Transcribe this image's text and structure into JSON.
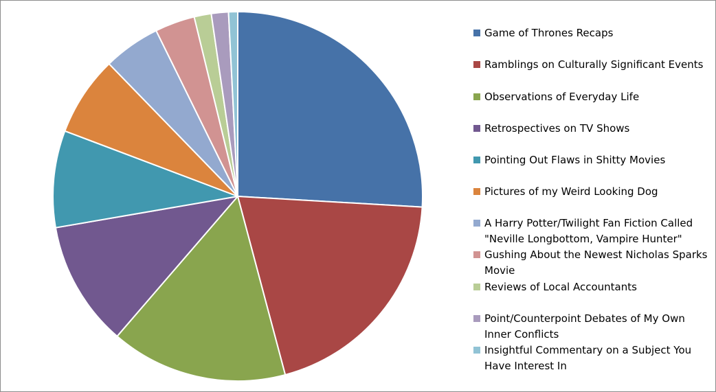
{
  "chart_data": {
    "type": "pie",
    "title": "",
    "start_angle_deg": 0,
    "direction": "clockwise",
    "legend_position": "right",
    "slices": [
      {
        "label": "Game of Thrones Recaps",
        "value": 26,
        "color": "#4672A8"
      },
      {
        "label": "Ramblings on Culturally Significant Events",
        "value": 20,
        "color": "#A94745"
      },
      {
        "label": "Observations of Everyday Life",
        "value": 15.5,
        "color": "#89A54E"
      },
      {
        "label": "Retrospectives on TV Shows",
        "value": 11,
        "color": "#71588F"
      },
      {
        "label": "Pointing Out Flaws in Shitty Movies",
        "value": 8.5,
        "color": "#4198AF"
      },
      {
        "label": "Pictures of my Weird Looking Dog",
        "value": 7,
        "color": "#DB843D"
      },
      {
        "label": "A Harry Potter/Twilight Fan Fiction Called \"Neville Longbottom, Vampire Hunter\"",
        "value": 5,
        "color": "#93A9CF"
      },
      {
        "label": "Gushing About the Newest Nicholas Sparks Movie",
        "value": 3.5,
        "color": "#D19392"
      },
      {
        "label": "Reviews of Local Accountants",
        "value": 1.5,
        "color": "#B9CD96"
      },
      {
        "label": "Point/Counterpoint Debates of My Own Inner Conflicts",
        "value": 1.5,
        "color": "#A99BBD"
      },
      {
        "label": "Insightful Commentary on a Subject You Have Interest In",
        "value": 0.8,
        "color": "#91C3D5"
      }
    ]
  }
}
